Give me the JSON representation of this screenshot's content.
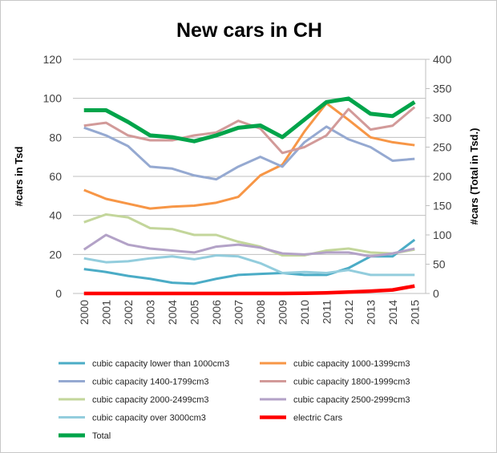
{
  "chart_data": {
    "type": "line",
    "title": "New cars in CH",
    "ylabel": "#cars in Tsd",
    "y2label": "#cars (Total in Tsd.)",
    "ylim": [
      0,
      120
    ],
    "y2lim": [
      0,
      400
    ],
    "yticks": [
      "0",
      "20",
      "40",
      "60",
      "80",
      "100",
      "120"
    ],
    "y2ticks": [
      "0",
      "50",
      "100",
      "150",
      "200",
      "250",
      "300",
      "350",
      "400"
    ],
    "grid": true,
    "legend_placement": "bottom",
    "categories": [
      "2000",
      "2001",
      "2002",
      "2003",
      "2004",
      "2005",
      "2006",
      "2007",
      "2008",
      "2009",
      "2010",
      "2011",
      "2012",
      "2013",
      "2014",
      "2015"
    ],
    "series": [
      {
        "name": "cubic capacity lower than 1000cm3",
        "color": "#4bacc6",
        "width": 3,
        "axis": "left",
        "values": [
          12.5,
          11,
          9,
          7.5,
          5.5,
          5,
          7.5,
          9.5,
          10,
          10.5,
          9.5,
          9.5,
          13,
          19,
          19,
          27.5
        ]
      },
      {
        "name": "cubic capacity 1000-1399cm3",
        "color": "#f79646",
        "width": 3,
        "axis": "left",
        "values": [
          53,
          48.5,
          46,
          43.5,
          44.5,
          45,
          46.5,
          49.5,
          60.5,
          66,
          83,
          97.5,
          89,
          80,
          77.5,
          76
        ]
      },
      {
        "name": "cubic capacity 1400-1799cm3",
        "color": "#95a9d1",
        "width": 3,
        "axis": "left",
        "values": [
          85,
          81,
          75.5,
          65,
          64,
          60.5,
          58.5,
          65,
          70,
          65,
          77.5,
          85.5,
          79,
          75,
          68,
          69
        ]
      },
      {
        "name": "cubic capacity 1800-1999cm3",
        "color": "#d29a99",
        "width": 3,
        "axis": "left",
        "values": [
          86,
          87.5,
          81,
          78.5,
          78.5,
          81,
          82.5,
          88.5,
          84.5,
          72,
          75,
          81,
          94.5,
          84,
          86,
          95.5
        ]
      },
      {
        "name": "cubic capacity 2000-2499cm3",
        "color": "#c3d69b",
        "width": 3,
        "axis": "left",
        "values": [
          36.5,
          40.5,
          39,
          33.5,
          33,
          30,
          30,
          26.5,
          24,
          19.5,
          19.5,
          22,
          23,
          21,
          20.5,
          22.5
        ]
      },
      {
        "name": "cubic capacity 2500-2999cm3",
        "color": "#b3a2c7",
        "width": 3,
        "axis": "left",
        "values": [
          22.5,
          30,
          25,
          23,
          22,
          21,
          24,
          25,
          23.5,
          20.5,
          20,
          21,
          21,
          19,
          20.5,
          23
        ]
      },
      {
        "name": "cubic capacity over 3000cm3",
        "color": "#93cddd",
        "width": 3,
        "axis": "left",
        "values": [
          18,
          16,
          16.5,
          18,
          19,
          17.5,
          19.5,
          19,
          15.5,
          10.5,
          11,
          10.5,
          12,
          9.5,
          9.5,
          9.5
        ]
      },
      {
        "name": "electric Cars",
        "color": "#ff0000",
        "width": 4.5,
        "axis": "left",
        "values": [
          0,
          0,
          0,
          0,
          0,
          0,
          0,
          0,
          0,
          0,
          0.1,
          0.3,
          0.7,
          1.2,
          1.8,
          3.8
        ]
      },
      {
        "name": "Total",
        "color": "#00a44a",
        "width": 5,
        "axis": "right",
        "values": [
          313,
          313,
          293,
          270,
          267,
          260,
          270,
          283,
          287,
          267,
          297,
          327,
          333,
          307,
          303,
          327
        ]
      }
    ]
  }
}
